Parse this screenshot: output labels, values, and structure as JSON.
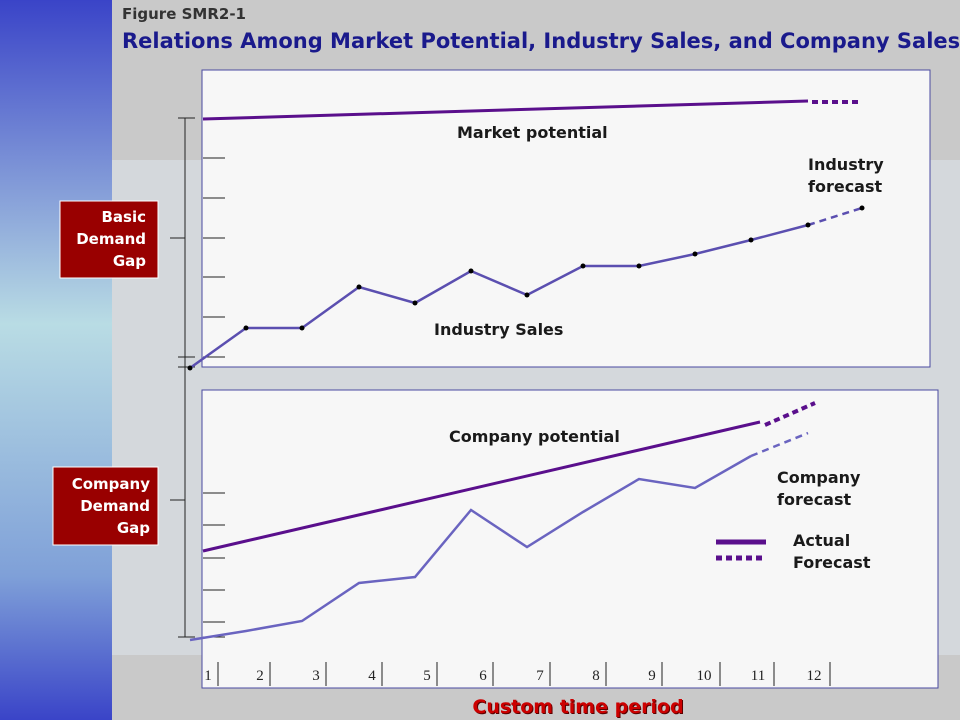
{
  "header": {
    "figure": "Figure SMR2-1",
    "title": "Relations Among Market Potential, Industry Sales, and Company Sales"
  },
  "top_panel": {
    "market_potential": "Market potential",
    "industry_forecast": [
      "Industry",
      "forecast"
    ],
    "industry_sales": "Industry Sales"
  },
  "bottom_panel": {
    "company_potential": "Company potential",
    "company_forecast": [
      "Company",
      "forecast"
    ]
  },
  "legend": {
    "actual": "Actual",
    "forecast": "Forecast"
  },
  "gaps": {
    "basic": [
      "Basic",
      "Demand",
      "Gap"
    ],
    "company": [
      "Company",
      "Demand",
      "Gap"
    ]
  },
  "x_axis": {
    "labels": [
      "1",
      "2",
      "3",
      "4",
      "5",
      "6",
      "7",
      "8",
      "9",
      "10",
      "11",
      "12"
    ],
    "title": "Custom time period"
  }
}
